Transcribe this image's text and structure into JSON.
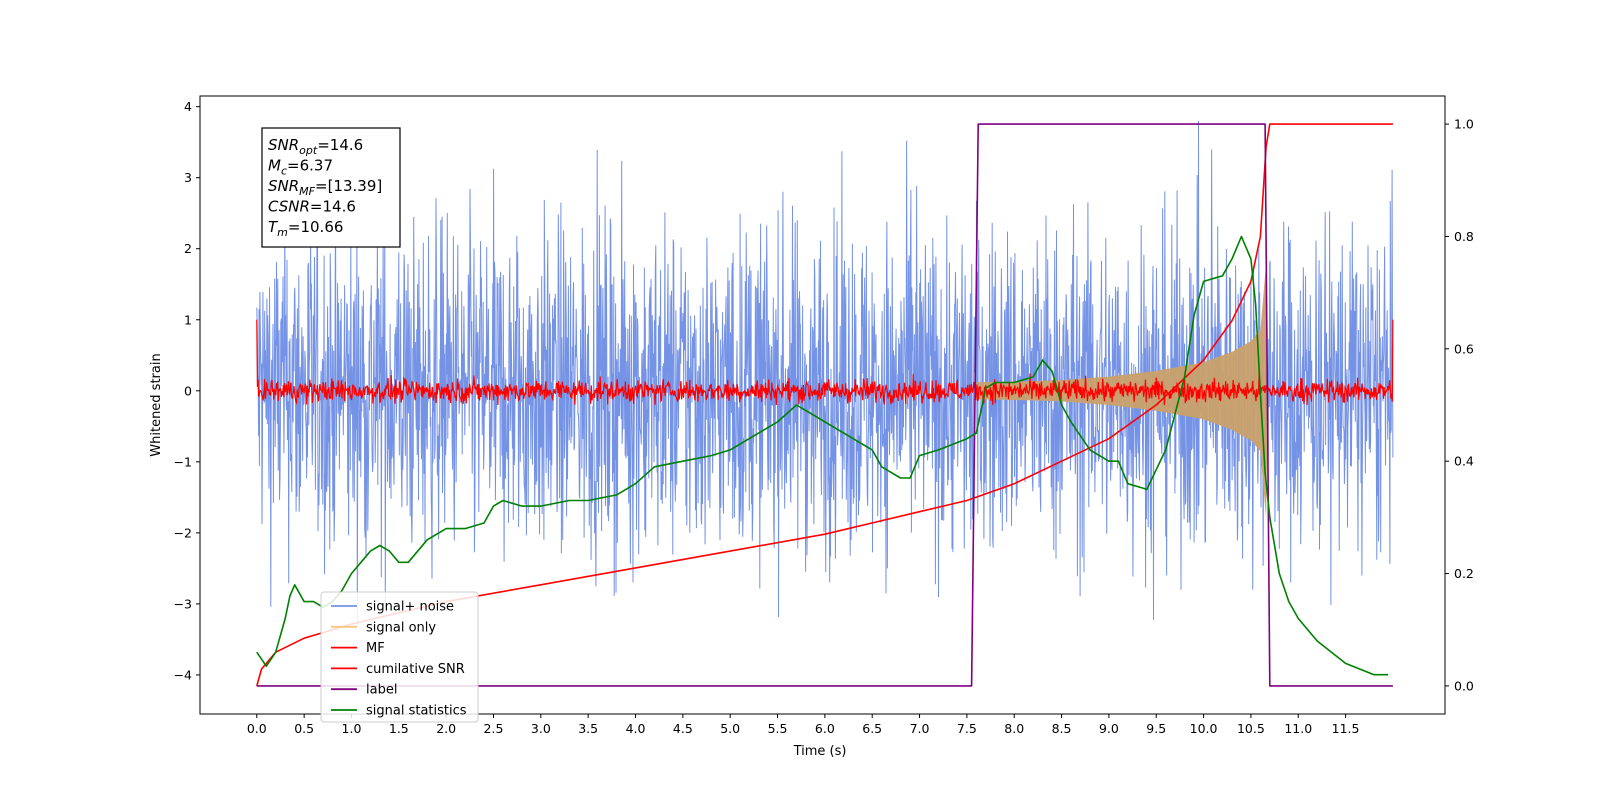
{
  "chart_data": {
    "type": "line",
    "xlabel": "Time (s)",
    "ylabel": "Whitened strain",
    "xlim": [
      -0.6,
      12.55
    ],
    "ylim": [
      -4.55,
      4.15
    ],
    "y2lim": [
      -0.05,
      1.05
    ],
    "x_ticks": [
      "0.0",
      "0.5",
      "1.0",
      "1.5",
      "2.0",
      "2.5",
      "3.0",
      "3.5",
      "4.0",
      "4.5",
      "5.0",
      "5.5",
      "6.0",
      "6.5",
      "7.0",
      "7.5",
      "8.0",
      "8.5",
      "9.0",
      "9.5",
      "10.0",
      "10.5",
      "11.0",
      "11.5"
    ],
    "y_ticks": [
      "4",
      "3",
      "2",
      "1",
      "0",
      "−1",
      "−2",
      "−3",
      "−4"
    ],
    "y2_ticks": [
      "1.0",
      "0.8",
      "0.6",
      "0.4",
      "0.2",
      "0.0"
    ],
    "annotation": {
      "lines": [
        {
          "var": "SNR",
          "sub": "opt",
          "value": "=14.6"
        },
        {
          "var": "M",
          "sub": "c",
          "value": "=6.37"
        },
        {
          "var": "SNR",
          "sub": "MF",
          "value": "=[13.39]"
        },
        {
          "var": "CSNR",
          "sub": "",
          "value": "=14.6"
        },
        {
          "var": "T",
          "sub": "m",
          "value": "=10.66"
        }
      ]
    },
    "legend": {
      "placement": "lower left",
      "entries": [
        {
          "label": "signal+ noise",
          "color": "#7593e6"
        },
        {
          "label": "signal only",
          "color": "#f5c77a"
        },
        {
          "label": "MF",
          "color": "#ff0000"
        },
        {
          "label": "cumilative SNR",
          "color": "#ff0000"
        },
        {
          "label": "label",
          "color": "#800080"
        },
        {
          "label": "signal statistics",
          "color": "#008000"
        }
      ]
    },
    "series": [
      {
        "name": "signal+ noise",
        "axis": "left",
        "style": "noise",
        "x_range": [
          0,
          12.0
        ],
        "amplitude_2sigma": 2.3,
        "peak": 3.8,
        "color": "#7593e6"
      },
      {
        "name": "signal only",
        "axis": "left",
        "style": "chirp_band",
        "points": [
          [
            7.6,
            0.12
          ],
          [
            8.0,
            0.13
          ],
          [
            8.5,
            0.15
          ],
          [
            9.0,
            0.2
          ],
          [
            9.5,
            0.28
          ],
          [
            10.0,
            0.4
          ],
          [
            10.3,
            0.55
          ],
          [
            10.5,
            0.7
          ],
          [
            10.6,
            0.85
          ],
          [
            10.66,
            1.8
          ],
          [
            10.68,
            0
          ]
        ],
        "color": "#c9a06a"
      },
      {
        "name": "MF",
        "axis": "left",
        "style": "noise",
        "x_range": [
          0,
          12.0
        ],
        "amplitude_2sigma": 0.16,
        "peak": 0.25,
        "edge_values": [
          1.0,
          1.0
        ],
        "color": "#ff0000"
      },
      {
        "name": "cumilative SNR",
        "axis": "right",
        "x": [
          0.0,
          0.05,
          0.2,
          0.5,
          1.0,
          2.0,
          3.0,
          4.0,
          5.0,
          6.0,
          7.0,
          7.5,
          8.0,
          8.5,
          9.0,
          9.5,
          10.0,
          10.3,
          10.5,
          10.6,
          10.66,
          10.7,
          12.0
        ],
        "values": [
          0.0,
          0.03,
          0.06,
          0.085,
          0.11,
          0.15,
          0.18,
          0.21,
          0.24,
          0.27,
          0.31,
          0.33,
          0.36,
          0.4,
          0.44,
          0.5,
          0.58,
          0.65,
          0.72,
          0.8,
          0.96,
          1.0,
          1.0
        ],
        "color": "#ff0000"
      },
      {
        "name": "label",
        "axis": "right",
        "x": [
          0.0,
          7.55,
          7.62,
          10.65,
          10.7,
          12.0
        ],
        "values": [
          0.0,
          0.0,
          1.0,
          1.0,
          0.0,
          0.0
        ],
        "color": "#800080"
      },
      {
        "name": "signal statistics",
        "axis": "right",
        "x": [
          0.0,
          0.1,
          0.2,
          0.3,
          0.35,
          0.4,
          0.5,
          0.6,
          0.7,
          0.8,
          0.9,
          1.0,
          1.1,
          1.2,
          1.3,
          1.4,
          1.5,
          1.6,
          1.8,
          2.0,
          2.2,
          2.4,
          2.5,
          2.6,
          2.8,
          3.0,
          3.3,
          3.5,
          3.8,
          4.0,
          4.2,
          4.5,
          4.8,
          5.0,
          5.3,
          5.5,
          5.7,
          5.8,
          5.9,
          6.0,
          6.2,
          6.4,
          6.5,
          6.6,
          6.7,
          6.8,
          6.9,
          7.0,
          7.2,
          7.5,
          7.6,
          7.7,
          7.8,
          8.0,
          8.2,
          8.3,
          8.4,
          8.5,
          8.6,
          8.8,
          8.9,
          9.0,
          9.1,
          9.2,
          9.4,
          9.6,
          9.8,
          9.9,
          10.0,
          10.2,
          10.3,
          10.4,
          10.5,
          10.55,
          10.6,
          10.65,
          10.7,
          10.8,
          10.9,
          11.0,
          11.2,
          11.5,
          11.8,
          11.95
        ],
        "values": [
          0.06,
          0.035,
          0.06,
          0.12,
          0.16,
          0.18,
          0.15,
          0.15,
          0.14,
          0.15,
          0.17,
          0.2,
          0.22,
          0.24,
          0.25,
          0.24,
          0.22,
          0.22,
          0.26,
          0.28,
          0.28,
          0.29,
          0.32,
          0.33,
          0.32,
          0.32,
          0.33,
          0.33,
          0.34,
          0.36,
          0.39,
          0.4,
          0.41,
          0.42,
          0.45,
          0.47,
          0.5,
          0.49,
          0.48,
          0.47,
          0.45,
          0.43,
          0.42,
          0.39,
          0.38,
          0.37,
          0.37,
          0.41,
          0.42,
          0.44,
          0.45,
          0.53,
          0.54,
          0.54,
          0.55,
          0.58,
          0.56,
          0.5,
          0.47,
          0.42,
          0.41,
          0.4,
          0.4,
          0.36,
          0.35,
          0.42,
          0.55,
          0.66,
          0.72,
          0.73,
          0.76,
          0.8,
          0.76,
          0.68,
          0.52,
          0.38,
          0.3,
          0.2,
          0.15,
          0.12,
          0.08,
          0.04,
          0.02,
          0.02
        ],
        "color": "#008000"
      }
    ]
  }
}
